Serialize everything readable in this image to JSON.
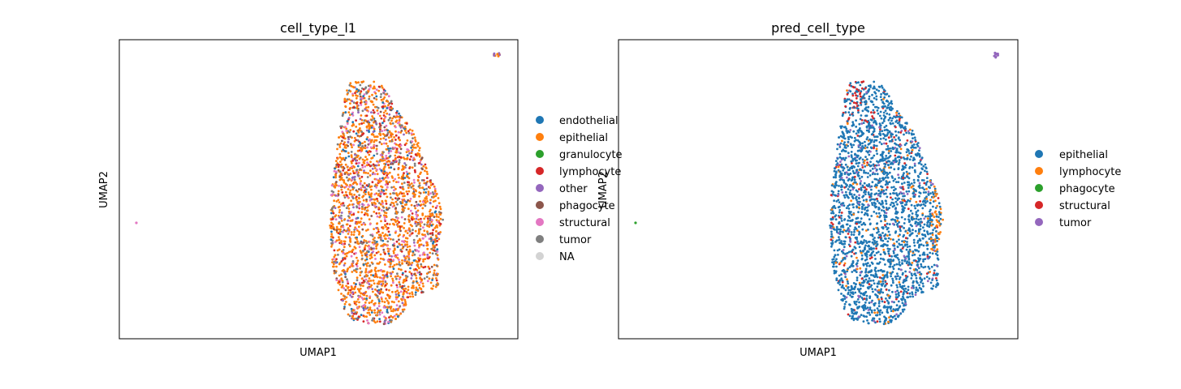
{
  "chart_data": [
    {
      "type": "scatter",
      "title": "cell_type_l1",
      "xlabel": "UMAP1",
      "ylabel": "UMAP2",
      "grid": false,
      "ticks": false,
      "legend_placement": "right-outside",
      "legend": [
        {
          "label": "endothelial",
          "color": "#1f77b4"
        },
        {
          "label": "epithelial",
          "color": "#ff7f0e"
        },
        {
          "label": "granulocyte",
          "color": "#2ca02c"
        },
        {
          "label": "lymphocyte",
          "color": "#d62728"
        },
        {
          "label": "other",
          "color": "#9467bd"
        },
        {
          "label": "phagocyte",
          "color": "#8c564b"
        },
        {
          "label": "structural",
          "color": "#e377c2"
        },
        {
          "label": "tumor",
          "color": "#7f7f7f"
        },
        {
          "label": "NA",
          "color": "#d3d3d3"
        }
      ],
      "point_colors": [
        "#ff7f0e",
        "#ff7f0e",
        "#ff7f0e",
        "#d62728",
        "#ff7f0e",
        "#7f7f7f",
        "#ff7f0e",
        "#e377c2",
        "#ff7f0e",
        "#9467bd",
        "#ff7f0e",
        "#8c564b",
        "#ff7f0e",
        "#1f77b4",
        "#ff7f0e",
        "#d62728",
        "#7f7f7f",
        "#ff7f0e",
        "#e377c2"
      ],
      "outliers": [
        {
          "color": "#e377c2"
        },
        {
          "color": "#ff7f0e"
        },
        {
          "color": "#9467bd"
        }
      ]
    },
    {
      "type": "scatter",
      "title": "pred_cell_type",
      "xlabel": "UMAP1",
      "ylabel": "UMAP2",
      "grid": false,
      "ticks": false,
      "legend_placement": "right-outside",
      "legend": [
        {
          "label": "epithelial",
          "color": "#1f77b4"
        },
        {
          "label": "lymphocyte",
          "color": "#ff7f0e"
        },
        {
          "label": "phagocyte",
          "color": "#2ca02c"
        },
        {
          "label": "structural",
          "color": "#d62728"
        },
        {
          "label": "tumor",
          "color": "#9467bd"
        }
      ],
      "point_colors": [
        "#1f77b4",
        "#1f77b4",
        "#1f77b4",
        "#1f77b4",
        "#1f77b4",
        "#1f77b4",
        "#1f77b4",
        "#1f77b4",
        "#1f77b4",
        "#1f77b4",
        "#1f77b4",
        "#1f77b4",
        "#1f77b4",
        "#1f77b4",
        "#ff7f0e",
        "#1f77b4",
        "#1f77b4",
        "#d62728",
        "#1f77b4",
        "#1f77b4",
        "#9467bd"
      ],
      "outliers": [
        {
          "color": "#2ca02c"
        },
        {
          "color": "#9467bd"
        }
      ]
    }
  ]
}
